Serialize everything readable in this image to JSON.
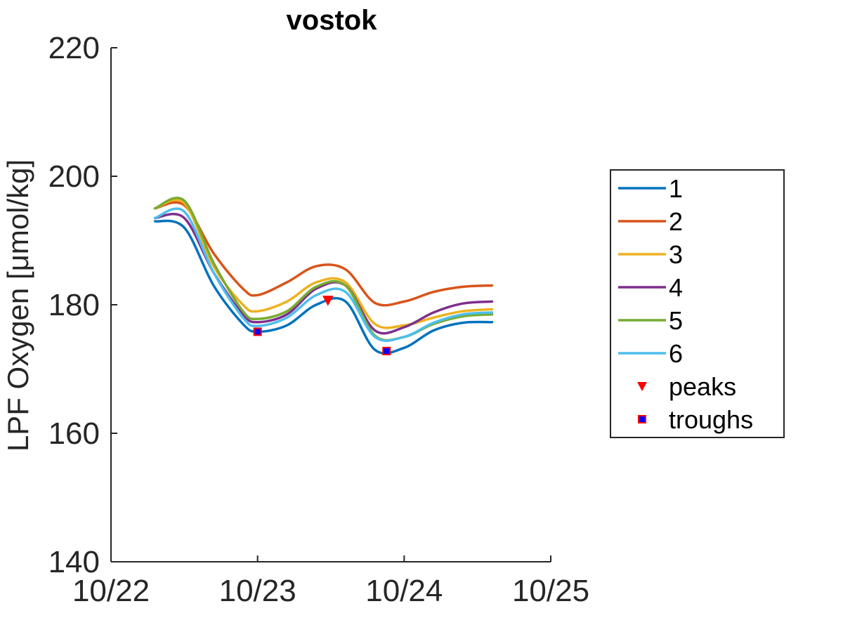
{
  "chart_data": {
    "type": "line",
    "title": "vostok",
    "xlabel": "",
    "ylabel": "LPF Oxygen [μmol/kg]",
    "xlim": [
      "10/22",
      "10/25"
    ],
    "ylim": [
      140,
      220
    ],
    "x_tick_labels": [
      "10/22",
      "10/23",
      "10/24",
      "10/25"
    ],
    "y_ticks": [
      140,
      160,
      180,
      200,
      220
    ],
    "y_tick_labels": [
      "140",
      "160",
      "180",
      "200",
      "220"
    ],
    "x_tick_dates": [
      "2016-10-22",
      "2016-10-23",
      "2016-10-24",
      "2016-10-25"
    ],
    "x": [
      "10/22 07:12",
      "10/22 12:00",
      "10/22 16:48",
      "10/22 21:36",
      "10/23 00:00",
      "10/23 04:48",
      "10/23 09:36",
      "10/23 14:24",
      "10/23 19:12",
      "10/24 00:00",
      "10/24 04:48",
      "10/24 09:36",
      "10/24 14:24"
    ],
    "series": [
      {
        "name": "1",
        "color": "#0072BD",
        "values": [
          193.0,
          192.0,
          183.0,
          177.0,
          175.8,
          176.8,
          180.0,
          180.5,
          173.0,
          173.3,
          176.0,
          177.2,
          177.3
        ]
      },
      {
        "name": "2",
        "color": "#D95319",
        "values": [
          195.0,
          195.5,
          188.0,
          182.5,
          181.5,
          183.5,
          186.0,
          185.5,
          180.3,
          180.5,
          182.0,
          182.8,
          183.0
        ]
      },
      {
        "name": "3",
        "color": "#EDB120",
        "values": [
          195.0,
          195.8,
          186.0,
          180.0,
          179.0,
          180.5,
          183.5,
          183.5,
          177.0,
          176.8,
          178.0,
          179.0,
          179.3
        ]
      },
      {
        "name": "4",
        "color": "#7E2F8E",
        "values": [
          193.5,
          193.5,
          185.0,
          178.5,
          177.3,
          178.5,
          182.5,
          183.0,
          176.0,
          176.5,
          178.8,
          180.2,
          180.5
        ]
      },
      {
        "name": "5",
        "color": "#77AC30",
        "values": [
          195.0,
          196.2,
          186.5,
          179.0,
          177.8,
          179.0,
          182.8,
          183.0,
          175.2,
          175.0,
          177.0,
          178.2,
          178.5
        ]
      },
      {
        "name": "6",
        "color": "#4DBEEE",
        "values": [
          193.5,
          194.5,
          185.0,
          178.0,
          176.7,
          178.0,
          181.5,
          182.0,
          175.0,
          175.0,
          177.2,
          178.5,
          178.8
        ]
      }
    ],
    "peaks": {
      "name": "peaks",
      "color": "#FF0000",
      "points": [
        {
          "x": "10/23 11:31",
          "y": 180.7
        }
      ]
    },
    "troughs": {
      "name": "troughs",
      "color": "#FF0000",
      "fill": "#0000FF",
      "points": [
        {
          "x": "10/23 00:00",
          "y": 175.8
        },
        {
          "x": "10/23 21:07",
          "y": 172.8
        }
      ]
    },
    "legend": {
      "position": "outside-right",
      "entries": [
        "1",
        "2",
        "3",
        "4",
        "5",
        "6",
        "peaks",
        "troughs"
      ]
    },
    "grid": false
  }
}
